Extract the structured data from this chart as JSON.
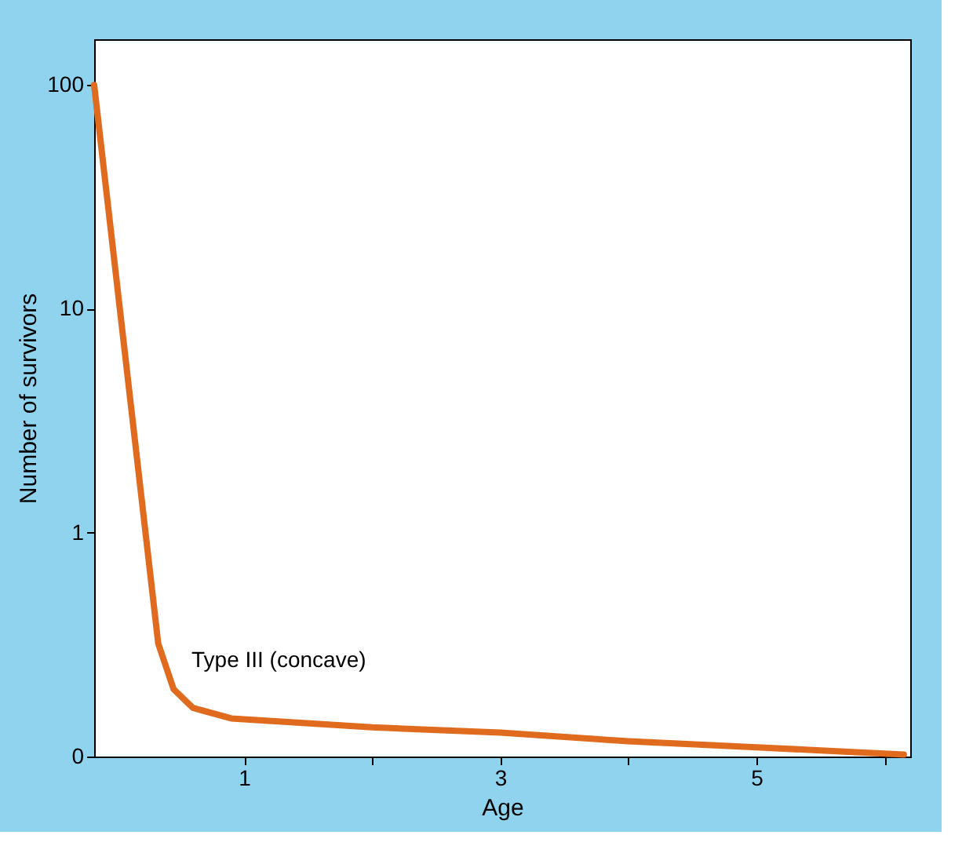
{
  "chart_data": {
    "type": "line",
    "xlabel": "Age",
    "ylabel": "Number of survivors",
    "log": "y",
    "xlim": [
      -0.17,
      6.2
    ],
    "xticks": [
      1,
      {
        "value": 2,
        "label": null
      },
      3,
      {
        "value": 4,
        "label": null
      },
      5,
      {
        "value": 6,
        "label": null
      }
    ],
    "ylim": [
      0.1,
      160
    ],
    "yticks": [
      {
        "value": 0.1,
        "label": "0"
      },
      1,
      10,
      100
    ],
    "grid": false,
    "series": [
      {
        "color": "#e06a1e",
        "x": [
          -0.17,
          0.33,
          0.45,
          0.6,
          0.9,
          2,
          3,
          4,
          5,
          6.15
        ],
        "values": [
          100,
          0.32,
          0.2,
          0.165,
          0.148,
          0.135,
          0.128,
          0.117,
          0.11,
          0.102
        ]
      }
    ],
    "annotations": [
      "Type III (concave)"
    ]
  }
}
